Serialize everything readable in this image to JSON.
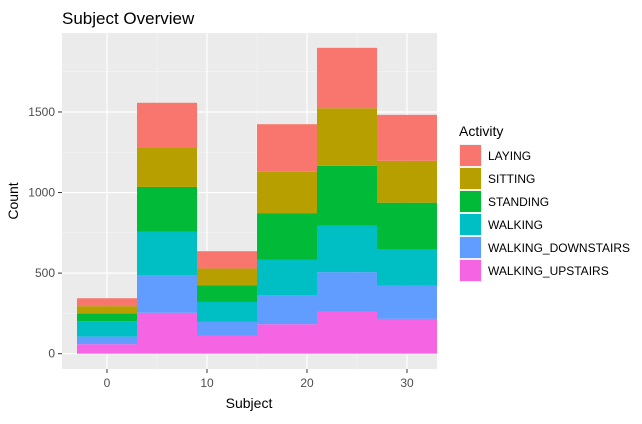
{
  "chart_data": {
    "type": "bar",
    "stacked": true,
    "title": "Subject Overview",
    "xlabel": "Subject",
    "ylabel": "Count",
    "xlim": [
      -4.5,
      33
    ],
    "ylim": [
      -95,
      1990
    ],
    "x_ticks": [
      0,
      10,
      20,
      30
    ],
    "y_ticks": [
      0,
      500,
      1000,
      1500
    ],
    "grid": true,
    "legend_position": "right",
    "legend_title": "Activity",
    "bins": [
      {
        "x_start": -3,
        "x_end": 3
      },
      {
        "x_start": 3,
        "x_end": 9
      },
      {
        "x_start": 9,
        "x_end": 15
      },
      {
        "x_start": 15,
        "x_end": 21
      },
      {
        "x_start": 21,
        "x_end": 27
      },
      {
        "x_start": 27,
        "x_end": 33
      }
    ],
    "series": [
      {
        "name": "WALKING_UPSTAIRS",
        "color": "#F564E3",
        "values": [
          59,
          254,
          113,
          183,
          262,
          216
        ]
      },
      {
        "name": "WALKING_DOWNSTAIRS",
        "color": "#619CFF",
        "values": [
          47,
          232,
          84,
          179,
          244,
          205
        ]
      },
      {
        "name": "WALKING",
        "color": "#00BFC4",
        "values": [
          95,
          270,
          124,
          220,
          289,
          226
        ]
      },
      {
        "name": "STANDING",
        "color": "#00BA38",
        "values": [
          48,
          279,
          102,
          290,
          371,
          290
        ]
      },
      {
        "name": "SITTING",
        "color": "#B79F00",
        "values": [
          46,
          245,
          106,
          257,
          357,
          260
        ]
      },
      {
        "name": "LAYING",
        "color": "#F8766D",
        "values": [
          49,
          277,
          107,
          295,
          375,
          285
        ]
      }
    ]
  }
}
